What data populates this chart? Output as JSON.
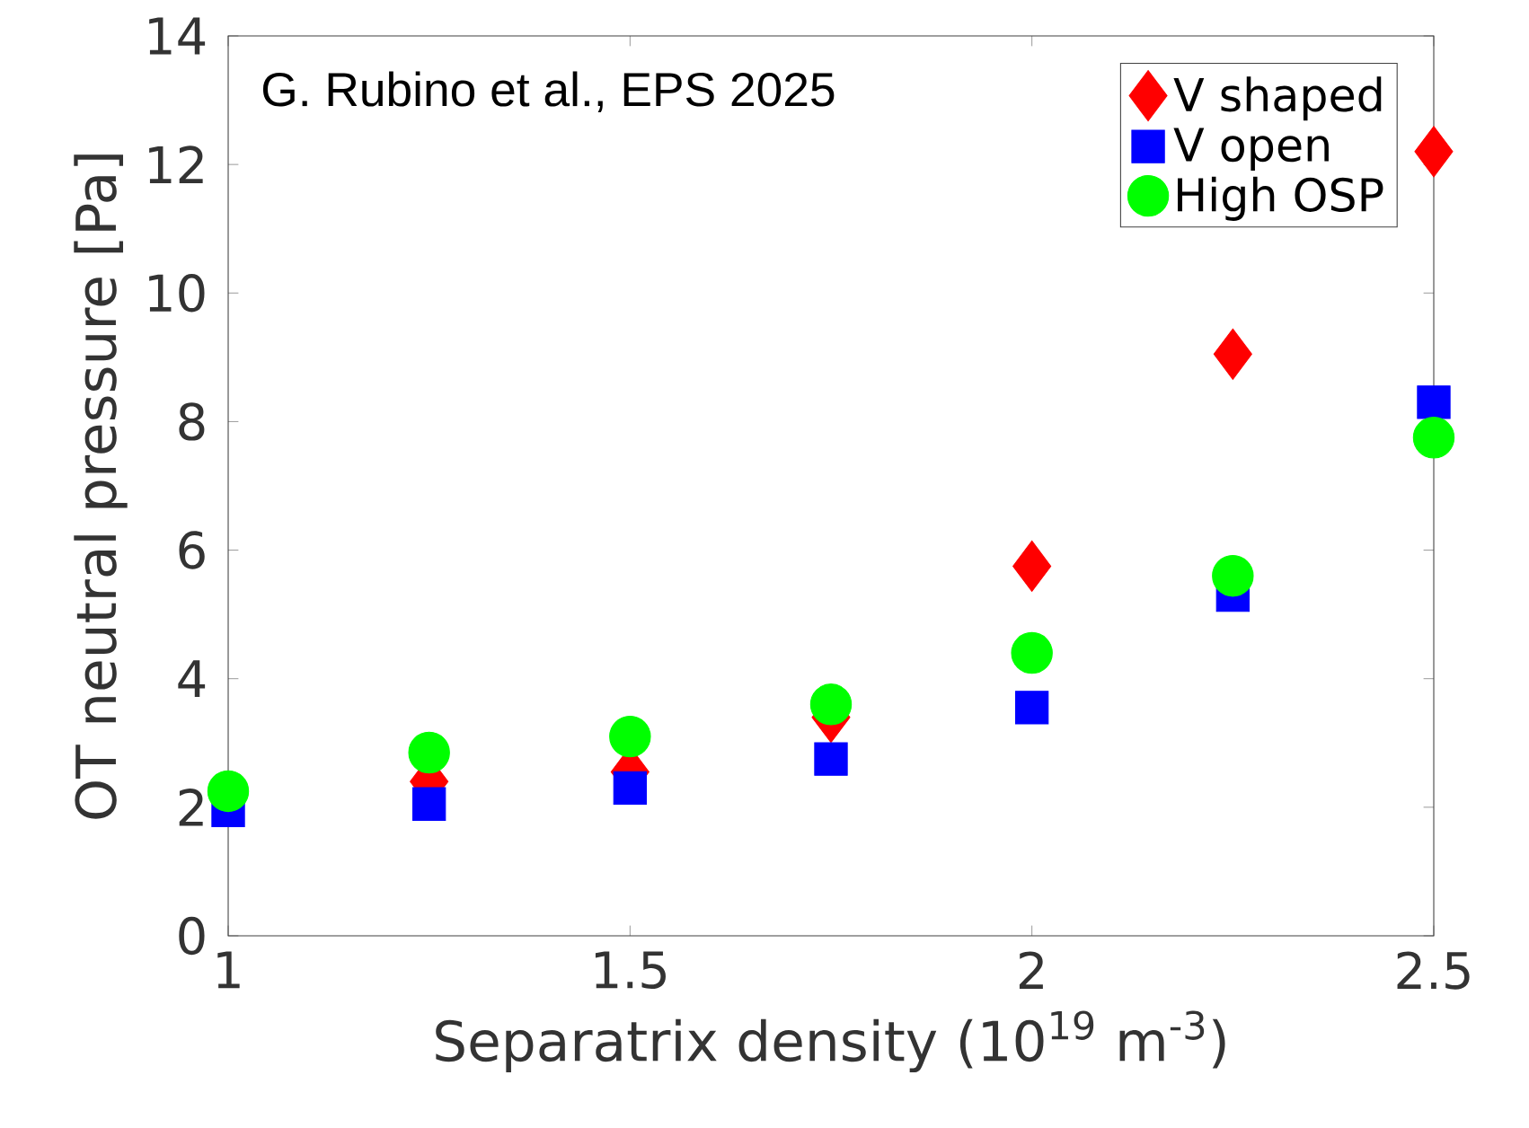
{
  "chart_data": {
    "type": "scatter",
    "xlabel": "Separatrix density (10$^{19}$ m$^{-3}$)",
    "ylabel": "OT neutral pressure [Pa]",
    "annotations": [
      "G. Rubino et al., EPS 2025"
    ],
    "x": [
      1,
      1.25,
      1.5,
      1.75,
      2,
      2.25,
      2.5
    ],
    "series": [
      {
        "name": "V shaped",
        "color": "#ff0000",
        "marker": "diamond",
        "values": [
          null,
          2.4,
          2.55,
          3.4,
          5.75,
          9.05,
          12.2
        ]
      },
      {
        "name": "V open",
        "color": "#0000ff",
        "marker": "square",
        "values": [
          1.95,
          2.05,
          2.3,
          2.75,
          3.55,
          5.3,
          8.3
        ]
      },
      {
        "name": "High OSP",
        "color": "#00ff00",
        "marker": "circle",
        "values": [
          2.25,
          2.85,
          3.1,
          3.6,
          4.4,
          5.6,
          7.75
        ]
      }
    ],
    "xlim": [
      1,
      2.5
    ],
    "ylim": [
      0,
      14
    ],
    "xticks": [
      1,
      1.5,
      2,
      2.5
    ],
    "yticks": [
      0,
      2,
      4,
      6,
      8,
      10,
      12,
      14
    ],
    "grid": false,
    "legend": "top right"
  }
}
